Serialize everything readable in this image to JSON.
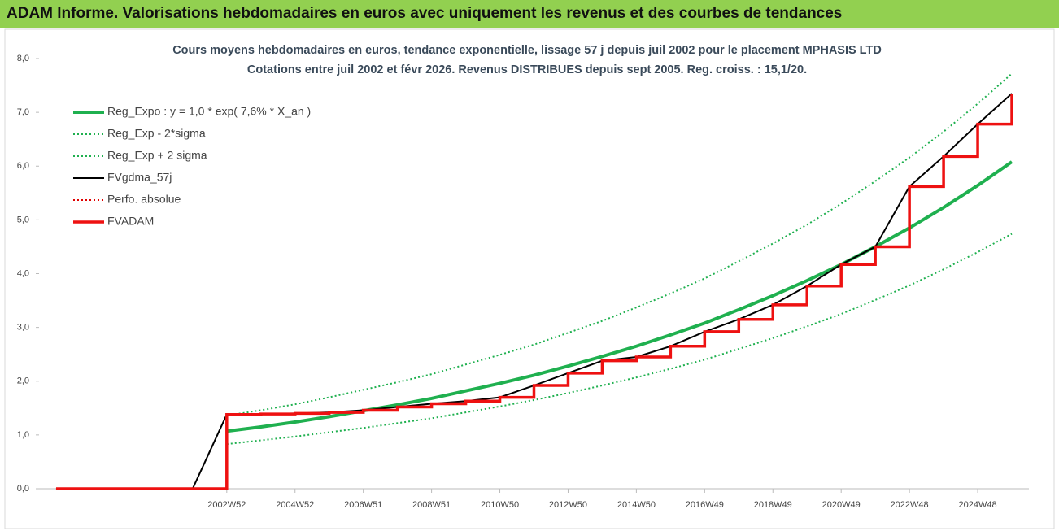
{
  "header": {
    "title": "ADAM Informe. Valorisations hebdomadaires en euros avec uniquement les revenus et des courbes de tendances"
  },
  "chart_data": {
    "type": "line",
    "title": "Cours moyens hebdomadaires en euros, tendance exponentielle, lissage 57 j depuis juil 2002 pour le placement MPHASIS LTD",
    "subtitle": "Cotations entre juil 2002 et févr 2026. Revenus DISTRIBUES depuis sept 2005. Reg. croiss. : 15,1/20.",
    "categories": [
      null,
      null,
      null,
      null,
      null,
      "2002W52",
      null,
      "2004W52",
      null,
      "2006W51",
      null,
      "2008W51",
      null,
      "2010W50",
      null,
      "2012W50",
      null,
      "2014W50",
      null,
      "2016W49",
      null,
      "2018W49",
      null,
      "2020W49",
      null,
      "2022W48",
      null,
      "2024W48",
      null
    ],
    "ylim": [
      0,
      8
    ],
    "yticks": [
      {
        "value": 0,
        "label": "0,0"
      },
      {
        "value": 1,
        "label": "1,0"
      },
      {
        "value": 2,
        "label": "2,0"
      },
      {
        "value": 3,
        "label": "3,0"
      },
      {
        "value": 4,
        "label": "4,0"
      },
      {
        "value": 5,
        "label": "5,0"
      },
      {
        "value": 6,
        "label": "6,0"
      },
      {
        "value": 7,
        "label": "7,0"
      },
      {
        "value": 8,
        "label": "8,0"
      }
    ],
    "legend": "upper left",
    "series": [
      {
        "name": "Reg_Expo : y = 1,0 * exp( 7,6% *  X_an )",
        "color": "#1fb04f",
        "style": "solid",
        "width": 4,
        "step": false,
        "values": [
          null,
          null,
          null,
          null,
          null,
          1.07,
          1.15,
          1.24,
          1.34,
          1.45,
          1.56,
          1.68,
          1.82,
          1.96,
          2.11,
          2.28,
          2.46,
          2.65,
          2.86,
          3.08,
          3.33,
          3.59,
          3.87,
          4.17,
          4.5,
          4.85,
          5.23,
          5.64,
          6.08
        ]
      },
      {
        "name": "Reg_Exp - 2*sigma",
        "color": "#1fb04f",
        "style": "dotted",
        "width": 2,
        "step": false,
        "values": [
          null,
          null,
          null,
          null,
          null,
          0.83,
          0.9,
          0.97,
          1.05,
          1.13,
          1.22,
          1.31,
          1.42,
          1.53,
          1.65,
          1.78,
          1.92,
          2.07,
          2.23,
          2.4,
          2.6,
          2.8,
          3.02,
          3.25,
          3.51,
          3.78,
          4.08,
          4.4,
          4.74
        ]
      },
      {
        "name": "Reg_Exp + 2 sigma",
        "color": "#1fb04f",
        "style": "dotted",
        "width": 2,
        "step": false,
        "values": [
          null,
          null,
          null,
          null,
          null,
          1.36,
          1.46,
          1.57,
          1.7,
          1.84,
          1.98,
          2.13,
          2.31,
          2.49,
          2.68,
          2.9,
          3.12,
          3.37,
          3.63,
          3.91,
          4.23,
          4.56,
          4.91,
          5.3,
          5.72,
          6.16,
          6.64,
          7.16,
          7.72
        ]
      },
      {
        "name": "FVgdma_57j",
        "color": "#000000",
        "style": "solid",
        "width": 2,
        "step": false,
        "values": [
          0,
          0,
          0,
          0,
          0,
          1.38,
          1.39,
          1.4,
          1.42,
          1.46,
          1.52,
          1.58,
          1.63,
          1.7,
          1.92,
          2.15,
          2.38,
          2.45,
          2.65,
          2.92,
          3.15,
          3.42,
          3.77,
          4.17,
          4.5,
          5.62,
          6.18,
          6.78,
          7.35
        ]
      },
      {
        "name": "Perfo. absolue",
        "color": "#e00000",
        "style": "dotted",
        "width": 2,
        "step": true,
        "values": [
          0,
          0,
          0,
          0,
          0,
          1.38,
          1.39,
          1.4,
          1.42,
          1.46,
          1.52,
          1.58,
          1.63,
          1.7,
          1.92,
          2.15,
          2.38,
          2.45,
          2.65,
          2.92,
          3.15,
          3.42,
          3.77,
          4.17,
          4.5,
          5.62,
          6.18,
          6.78,
          7.35
        ]
      },
      {
        "name": "FVADAM",
        "color": "#ee1111",
        "style": "solid",
        "width": 3.5,
        "step": true,
        "values": [
          0,
          0,
          0,
          0,
          0,
          1.38,
          1.39,
          1.4,
          1.42,
          1.46,
          1.52,
          1.58,
          1.63,
          1.7,
          1.92,
          2.15,
          2.38,
          2.45,
          2.65,
          2.92,
          3.15,
          3.42,
          3.77,
          4.17,
          4.5,
          5.62,
          6.18,
          6.78,
          7.35
        ]
      }
    ]
  }
}
